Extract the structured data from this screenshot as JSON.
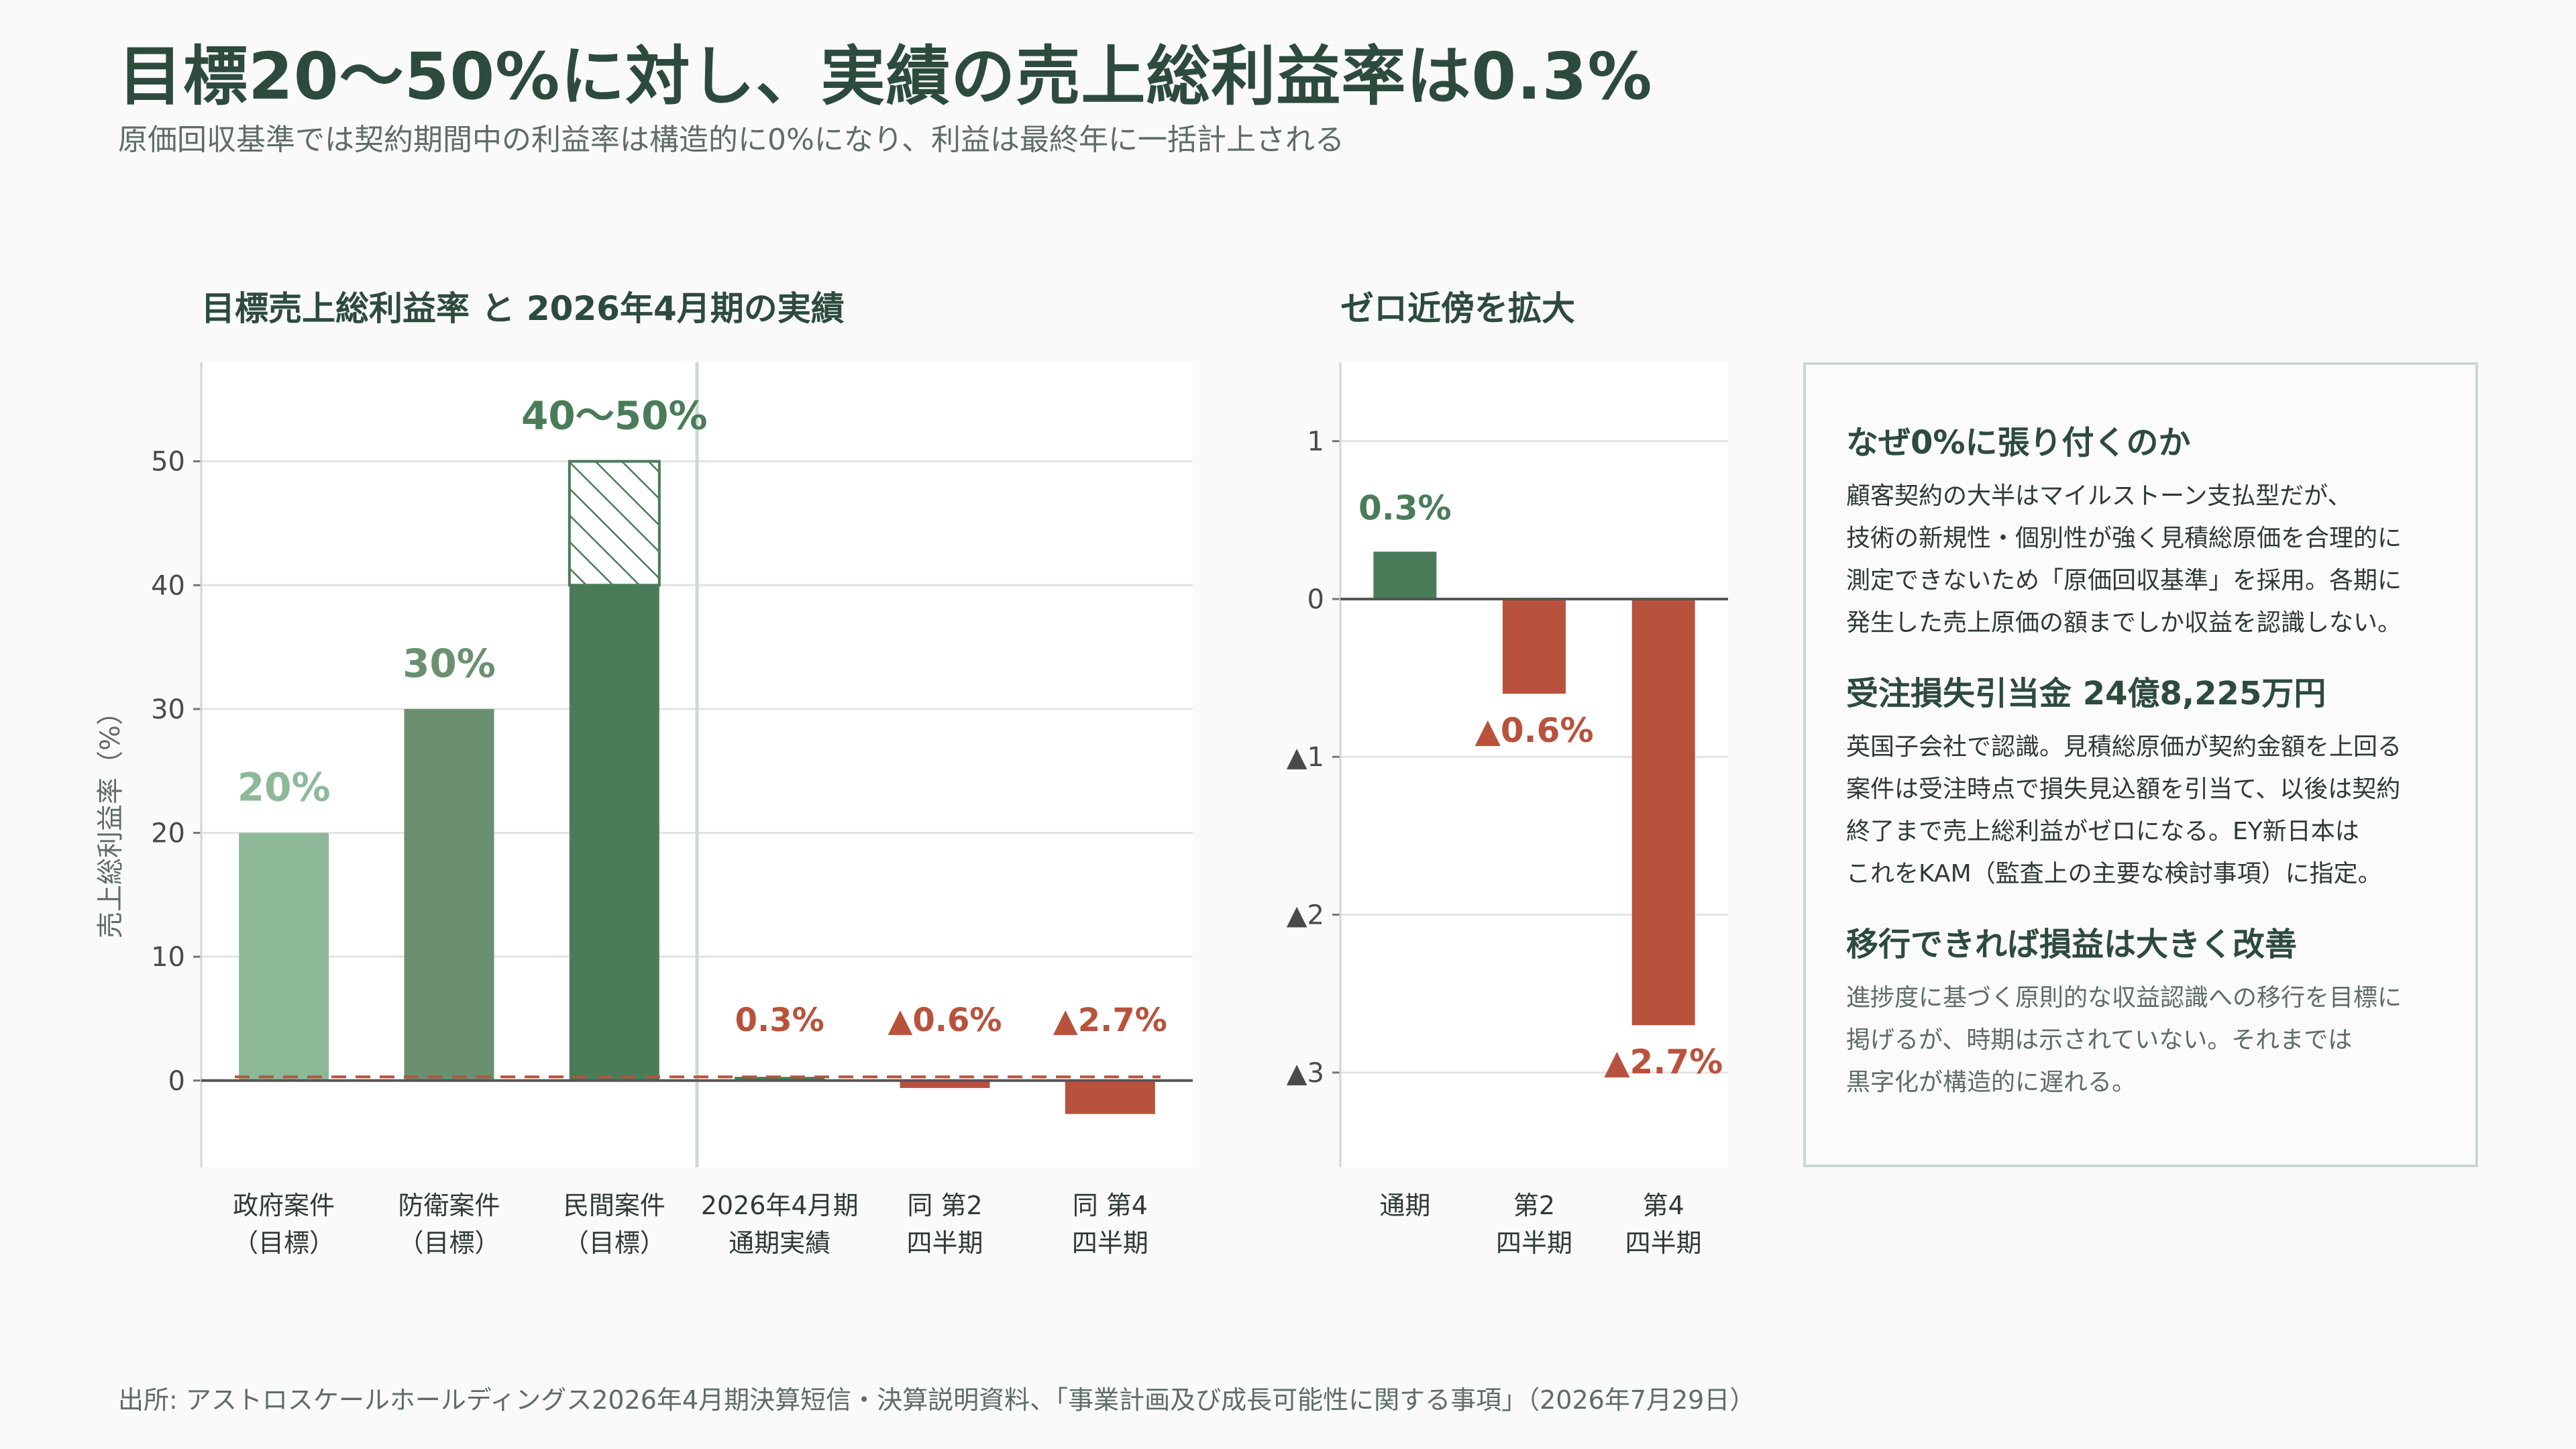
{
  "header": {
    "title": "目標20〜50%に対し、実績の売上総利益率は0.3%",
    "subtitle": "原価回収基準では契約期間中の利益率は構造的に0%になり、利益は最終年に一括計上される"
  },
  "colors": {
    "target_light": "#8db998",
    "target_mid": "#6a9070",
    "target_dark": "#4a7c59",
    "positive": "#4a7c59",
    "negative": "#b9523c",
    "grid": "#e3e3e3",
    "axis": "#6f7a74"
  },
  "chart_data": [
    {
      "type": "bar",
      "title": "目標売上総利益率 と 2026年4月期の実績",
      "ylabel": "売上総利益率（%）",
      "ylim": [
        -7,
        58
      ],
      "yticks": [
        0,
        10,
        20,
        30,
        40,
        50
      ],
      "grid": true,
      "categories": [
        [
          "政府案件",
          "（目標）"
        ],
        [
          "防衛案件",
          "（目標）"
        ],
        [
          "民間案件",
          "（目標）"
        ],
        [
          "2026年4月期",
          "通期実績"
        ],
        [
          "同 第2",
          "四半期"
        ],
        [
          "同 第4",
          "四半期"
        ]
      ],
      "values": [
        20,
        30,
        40,
        0.3,
        -0.6,
        -2.7
      ],
      "range_upper": [
        null,
        null,
        50,
        null,
        null,
        null
      ],
      "data_labels": [
        "20%",
        "30%",
        "40〜50%",
        "0.3%",
        "▲0.6%",
        "▲2.7%"
      ],
      "reference_line": 0.3
    },
    {
      "type": "bar",
      "title": "ゼロ近傍を拡大",
      "ylim": [
        -3.6,
        1.5
      ],
      "yticks": [
        1,
        0,
        -1,
        -2,
        -3
      ],
      "ytick_labels": [
        "1",
        "0",
        "▲1",
        "▲2",
        "▲3"
      ],
      "grid": true,
      "categories": [
        [
          "通期"
        ],
        [
          "第2",
          "四半期"
        ],
        [
          "第4",
          "四半期"
        ]
      ],
      "values": [
        0.3,
        -0.6,
        -2.7
      ],
      "data_labels": [
        "0.3%",
        "▲0.6%",
        "▲2.7%"
      ]
    }
  ],
  "panel": {
    "sections": [
      {
        "heading": "なぜ0%に張り付くのか",
        "body": "顧客契約の大半はマイルストーン支払型だが、\n技術の新規性・個別性が強く見積総原価を合理的に\n測定できないため「原価回収基準」を採用。各期に\n発生した売上原価の額までしか収益を認識しない。"
      },
      {
        "heading": "受注損失引当金 24億8,225万円",
        "body": "英国子会社で認識。見積総原価が契約金額を上回る\n案件は受注時点で損失見込額を引当て、以後は契約\n終了まで売上総利益がゼロになる。EY新日本は\nこれをKAM（監査上の主要な検討事項）に指定。"
      },
      {
        "heading": "移行できれば損益は大きく改善",
        "body": "進捗度に基づく原則的な収益認識への移行を目標に\n掲げるが、時期は示されていない。それまでは\n黒字化が構造的に遅れる。"
      }
    ]
  },
  "footer": {
    "source": "出所: アストロスケールホールディングス2026年4月期決算短信・決算説明資料、「事業計画及び成長可能性に関する事項」（2026年7月29日）"
  }
}
